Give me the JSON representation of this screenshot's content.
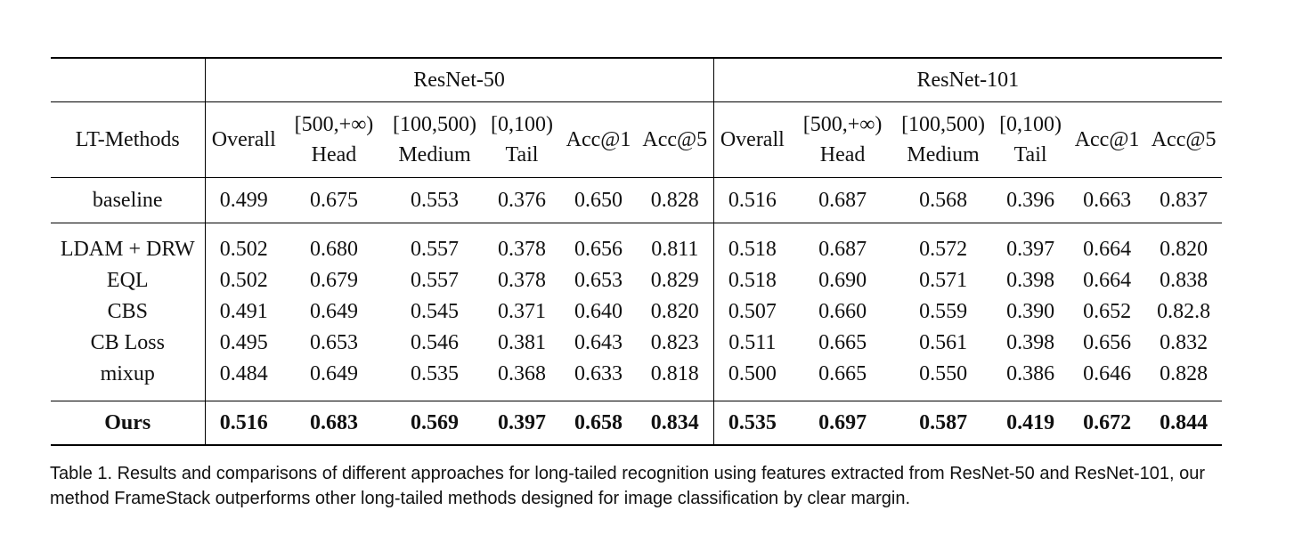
{
  "table": {
    "groups": [
      "ResNet-50",
      "ResNet-101"
    ],
    "method_header": "LT-Methods",
    "subheaders": [
      {
        "top": "",
        "bottom": "Overall"
      },
      {
        "top": "[500,+∞)",
        "bottom": "Head"
      },
      {
        "top": "[100,500)",
        "bottom": "Medium"
      },
      {
        "top": "[0,100)",
        "bottom": "Tail"
      },
      {
        "top": "",
        "bottom": "Acc@1"
      },
      {
        "top": "",
        "bottom": "Acc@5"
      }
    ],
    "rows": [
      {
        "method": "baseline",
        "values": [
          "0.499",
          "0.675",
          "0.553",
          "0.376",
          "0.650",
          "0.828",
          "0.516",
          "0.687",
          "0.568",
          "0.396",
          "0.663",
          "0.837"
        ]
      },
      {
        "method": "LDAM + DRW",
        "values": [
          "0.502",
          "0.680",
          "0.557",
          "0.378",
          "0.656",
          "0.811",
          "0.518",
          "0.687",
          "0.572",
          "0.397",
          "0.664",
          "0.820"
        ]
      },
      {
        "method": "EQL",
        "values": [
          "0.502",
          "0.679",
          "0.557",
          "0.378",
          "0.653",
          "0.829",
          "0.518",
          "0.690",
          "0.571",
          "0.398",
          "0.664",
          "0.838"
        ]
      },
      {
        "method": "CBS",
        "values": [
          "0.491",
          "0.649",
          "0.545",
          "0.371",
          "0.640",
          "0.820",
          "0.507",
          "0.660",
          "0.559",
          "0.390",
          "0.652",
          "0.82.8"
        ]
      },
      {
        "method": "CB Loss",
        "values": [
          "0.495",
          "0.653",
          "0.546",
          "0.381",
          "0.643",
          "0.823",
          "0.511",
          "0.665",
          "0.561",
          "0.398",
          "0.656",
          "0.832"
        ]
      },
      {
        "method": "mixup",
        "values": [
          "0.484",
          "0.649",
          "0.535",
          "0.368",
          "0.633",
          "0.818",
          "0.500",
          "0.665",
          "0.550",
          "0.386",
          "0.646",
          "0.828"
        ]
      },
      {
        "method": "Ours",
        "values": [
          "0.516",
          "0.683",
          "0.569",
          "0.397",
          "0.658",
          "0.834",
          "0.535",
          "0.697",
          "0.587",
          "0.419",
          "0.672",
          "0.844"
        ]
      }
    ]
  },
  "caption": "Table 1. Results and comparisons of different approaches for long-tailed recognition using features extracted from ResNet-50 and ResNet-101, our method FrameStack outperforms other long-tailed methods designed for image classification by clear margin."
}
